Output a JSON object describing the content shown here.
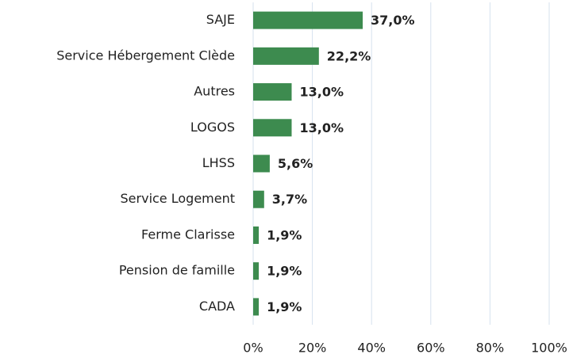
{
  "chart_data": {
    "type": "bar",
    "orientation": "horizontal",
    "categories": [
      "SAJE",
      "Service Hébergement Clède",
      "Autres",
      "LOGOS",
      "LHSS",
      "Service Logement",
      "Ferme Clarisse",
      "Pension de famille",
      "CADA"
    ],
    "values": [
      37.0,
      22.2,
      13.0,
      13.0,
      5.6,
      3.7,
      1.9,
      1.9,
      1.9
    ],
    "value_labels": [
      "37,0%",
      "22,2%",
      "13,0%",
      "13,0%",
      "5,6%",
      "3,7%",
      "1,9%",
      "1,9%",
      "1,9%"
    ],
    "color": "#3d8b4f",
    "xlim": [
      0,
      100
    ],
    "xticks": [
      {
        "value": 0,
        "label": "0%"
      },
      {
        "value": 20,
        "label": "20%"
      },
      {
        "value": 40,
        "label": "40%"
      },
      {
        "value": 60,
        "label": "60%"
      },
      {
        "value": 80,
        "label": "80%"
      },
      {
        "value": 100,
        "label": "100%"
      }
    ],
    "grid": true
  }
}
